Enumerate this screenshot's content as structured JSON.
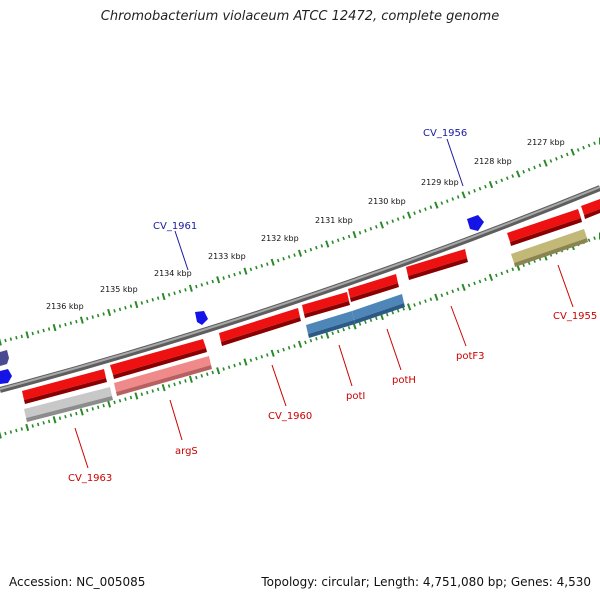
{
  "title": "Chromobacterium violaceum ATCC 12472, complete genome",
  "accession_text": "Accession: NC_005085",
  "summary_text": "Topology: circular; Length: 4,751,080 bp; Genes: 4,530",
  "colors": {
    "backbone": "#7a7a7a",
    "tick": "#2a8a2a",
    "gene_red": "#ee1111",
    "gene_pink": "#f08a8a",
    "gene_gray": "#bcbcbc",
    "gene_blue": "#4f86b8",
    "gene_olive": "#c2b877",
    "marker_blue": "#1414e6",
    "marker_navy": "#4a4a90",
    "label_red": "#cc0000",
    "label_blue": "#1a1aa0"
  },
  "scale_labels": [
    {
      "text": "2136 kbp"
    },
    {
      "text": "2135 kbp"
    },
    {
      "text": "2134 kbp"
    },
    {
      "text": "2133 kbp"
    },
    {
      "text": "2132 kbp"
    },
    {
      "text": "2131 kbp"
    },
    {
      "text": "2130 kbp"
    },
    {
      "text": "2129 kbp"
    },
    {
      "text": "2128 kbp"
    },
    {
      "text": "2127 kbp"
    }
  ],
  "gene_labels": [
    {
      "text": "CV_1963",
      "color": "#cc0000"
    },
    {
      "text": "argS",
      "color": "#cc0000"
    },
    {
      "text": "CV_1960",
      "color": "#cc0000"
    },
    {
      "text": "potI",
      "color": "#cc0000"
    },
    {
      "text": "potH",
      "color": "#cc0000"
    },
    {
      "text": "potF3",
      "color": "#cc0000"
    },
    {
      "text": "CV_1955",
      "color": "#cc0000"
    },
    {
      "text": "CV_1961",
      "color": "#1a1aa0"
    },
    {
      "text": "CV_1956",
      "color": "#1a1aa0"
    }
  ]
}
